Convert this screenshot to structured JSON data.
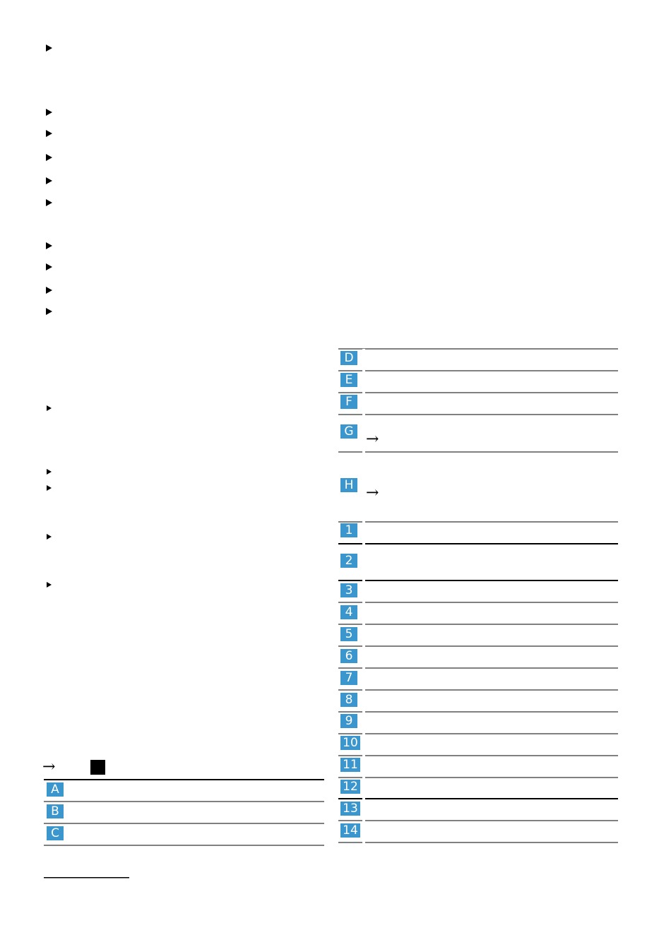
{
  "left_table": {
    "arrow": "→",
    "rows": [
      {
        "label": "A"
      },
      {
        "label": "B"
      },
      {
        "label": "C"
      }
    ]
  },
  "right_table": {
    "rows": [
      {
        "label": "D"
      },
      {
        "label": "E"
      },
      {
        "label": "F"
      },
      {
        "label": "G",
        "arrow": "→"
      },
      {
        "label": "H",
        "arrow": "→"
      },
      {
        "label": "1"
      },
      {
        "label": "2"
      },
      {
        "label": "3"
      },
      {
        "label": "4"
      },
      {
        "label": "5"
      },
      {
        "label": "6"
      },
      {
        "label": "7"
      },
      {
        "label": "8"
      },
      {
        "label": "9"
      },
      {
        "label": "10"
      },
      {
        "label": "11"
      },
      {
        "label": "12"
      },
      {
        "label": "13"
      },
      {
        "label": "14"
      }
    ]
  }
}
